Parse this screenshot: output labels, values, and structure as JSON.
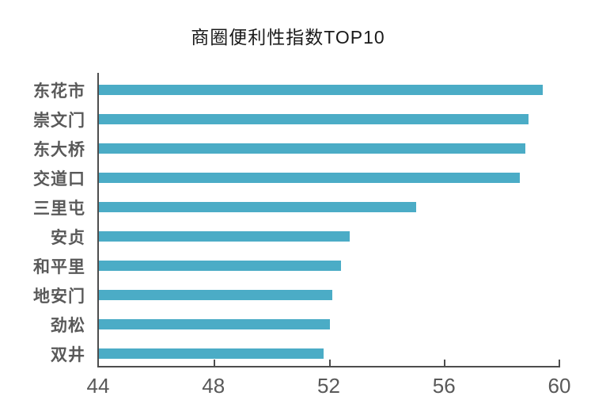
{
  "title": "商圈便利性指数TOP10",
  "colors": {
    "bar": "#4bacc6",
    "axis": "#4d4d4d",
    "text": "#595959",
    "title": "#1a1a1a",
    "background": "#ffffff"
  },
  "chart_data": {
    "type": "bar",
    "orientation": "horizontal",
    "title": "商圈便利性指数TOP10",
    "categories": [
      "东花市",
      "崇文门",
      "东大桥",
      "交道口",
      "三里屯",
      "安贞",
      "和平里",
      "地安门",
      "劲松",
      "双井"
    ],
    "values": [
      59.4,
      58.9,
      58.8,
      58.6,
      55.0,
      52.7,
      52.4,
      52.1,
      52.0,
      51.8
    ],
    "xlabel": "",
    "ylabel": "",
    "xlim": [
      44,
      60
    ],
    "xticks": [
      44,
      48,
      52,
      56,
      60
    ],
    "grid": false,
    "legend": false,
    "bars_sorted_descending": true
  }
}
